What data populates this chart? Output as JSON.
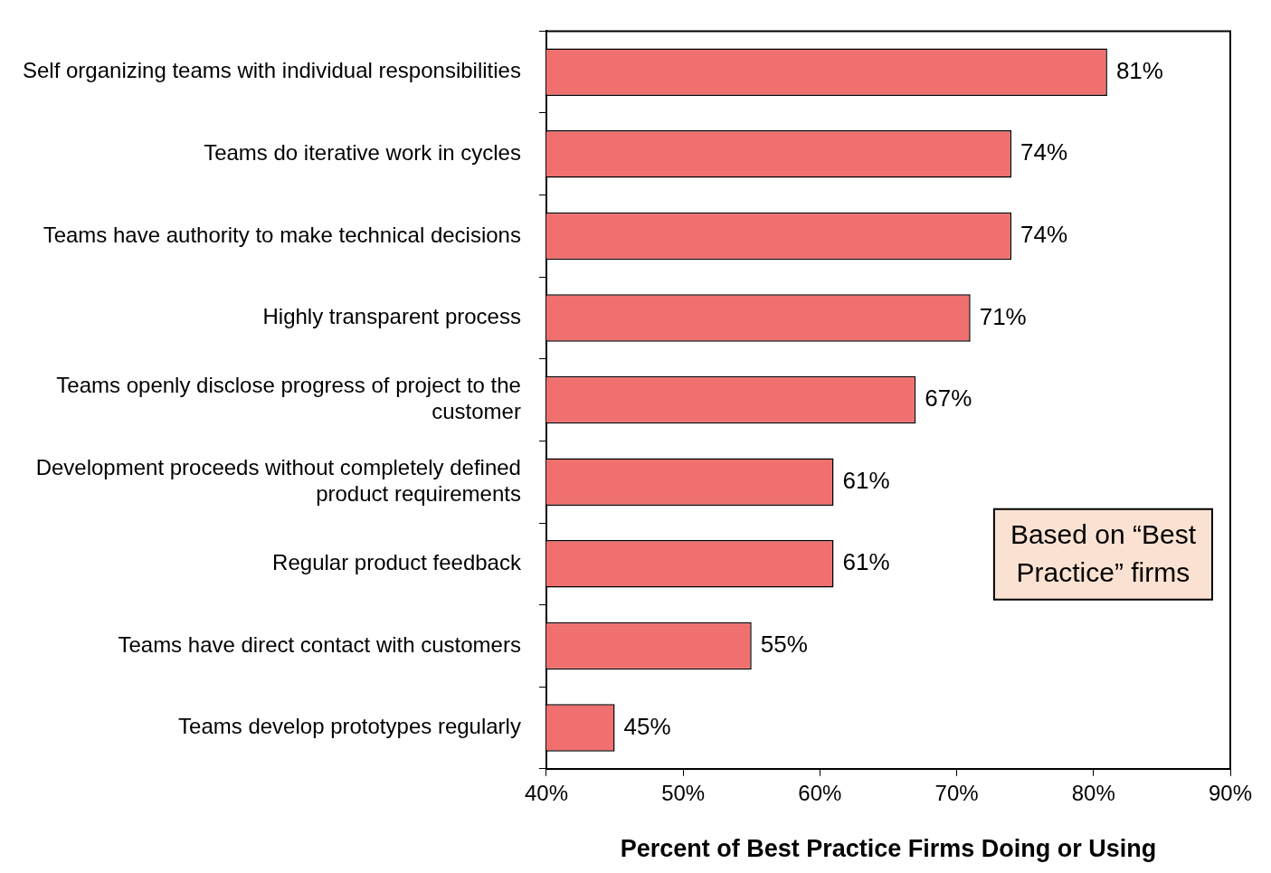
{
  "chart_data": {
    "type": "bar",
    "orientation": "horizontal",
    "categories": [
      "Self organizing teams with individual responsibilities",
      "Teams do iterative work in cycles",
      "Teams have authority to make technical decisions",
      "Highly transparent process",
      "Teams openly disclose progress of project to the customer",
      "Development proceeds without completely defined product requirements",
      "Regular product feedback",
      "Teams have direct contact with customers",
      "Teams develop prototypes regularly"
    ],
    "values": [
      81,
      74,
      74,
      71,
      67,
      61,
      61,
      55,
      45
    ],
    "value_labels": [
      "81%",
      "74%",
      "74%",
      "71%",
      "67%",
      "61%",
      "61%",
      "55%",
      "45%"
    ],
    "color": "#f07070",
    "xlim": [
      40,
      90
    ],
    "xticks": [
      {
        "value": 40,
        "label": "40%"
      },
      {
        "value": 50,
        "label": "50%"
      },
      {
        "value": 60,
        "label": "60%"
      },
      {
        "value": 70,
        "label": "70%"
      },
      {
        "value": 80,
        "label": "80%"
      },
      {
        "value": 90,
        "label": "90%"
      }
    ],
    "xlabel": "Percent of Best Practice Firms Doing or Using",
    "annotations": [
      "Based on “Best Practice” firms"
    ],
    "grid": false,
    "legend": false
  }
}
